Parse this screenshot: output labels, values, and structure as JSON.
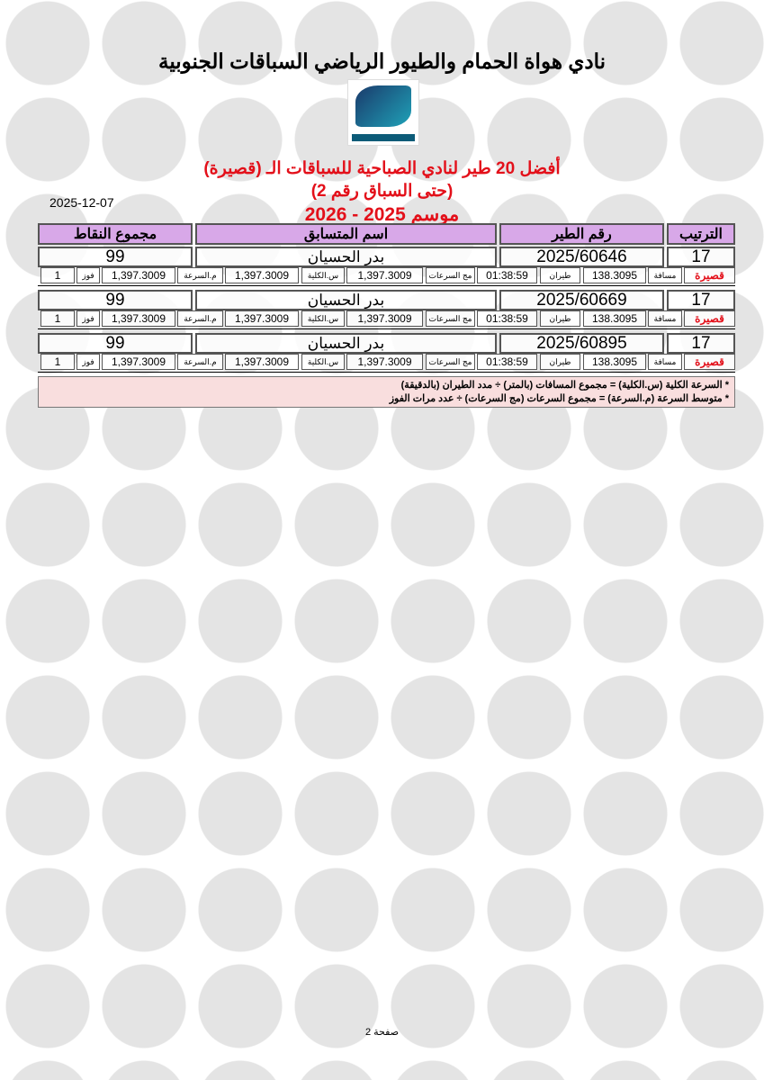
{
  "title": "نادي هواة الحمام والطيور الرياضي السباقات الجنوبية",
  "heading": {
    "line1": "أفضل 20 طير لنادي الصباحية للسباقات الـ (قصيرة)",
    "line2": "(حتى السباق رقم 2)",
    "line3": "موسم 2025 - 2026"
  },
  "date": "2025-12-07",
  "columns": {
    "rank": "الترتيب",
    "bird": "رقم الطير",
    "name": "اسم المتسابق",
    "points": "مجموع النقاط"
  },
  "labels": {
    "category": "قصيرة",
    "distance": "مسافة",
    "flight": "طيران",
    "speed_sum": "مج السرعات",
    "total_speed": "س.الكلية",
    "avg_speed": "م.السرعة",
    "wins": "فوز"
  },
  "rows": [
    {
      "rank": "17",
      "bird": "2025/60646",
      "name": "بدر الحسيان",
      "points": "99",
      "distance": "138.3095",
      "flight": "01:38:59",
      "speed_sum": "1,397.3009",
      "total_speed": "1,397.3009",
      "avg_speed": "1,397.3009",
      "wins": "1"
    },
    {
      "rank": "17",
      "bird": "2025/60669",
      "name": "بدر الحسيان",
      "points": "99",
      "distance": "138.3095",
      "flight": "01:38:59",
      "speed_sum": "1,397.3009",
      "total_speed": "1,397.3009",
      "avg_speed": "1,397.3009",
      "wins": "1"
    },
    {
      "rank": "17",
      "bird": "2025/60895",
      "name": "بدر الحسيان",
      "points": "99",
      "distance": "138.3095",
      "flight": "01:38:59",
      "speed_sum": "1,397.3009",
      "total_speed": "1,397.3009",
      "avg_speed": "1,397.3009",
      "wins": "1"
    }
  ],
  "notes": [
    "* السرعة الكلية (س.الكلية) = مجموع المسافات (بالمتر) ÷ مدد الطيران (بالدقيقة)",
    "* متوسط السرعة (م.السرعة) = مجموع السرعات (مج السرعات) ÷ عدد مرات الفوز"
  ],
  "footer": "صفحة 2"
}
